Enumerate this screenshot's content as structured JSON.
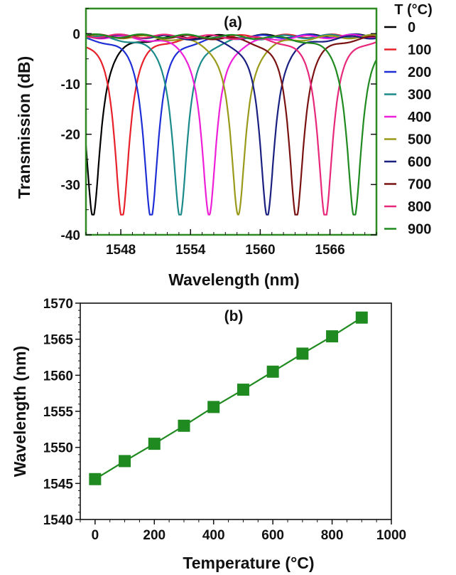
{
  "chart_data": [
    {
      "type": "line",
      "panel_label": "(a)",
      "xlabel": "Wavelength (nm)",
      "ylabel": "Transmission (dB)",
      "xlim": [
        1545,
        1570
      ],
      "ylim": [
        -40,
        5
      ],
      "xticks": [
        1548,
        1554,
        1560,
        1566
      ],
      "yticks": [
        0,
        -10,
        -20,
        -30,
        -40
      ],
      "legend": {
        "title": "T (°C)",
        "placement": "right-outside"
      },
      "colors": {
        "axes_frame": "#2e8b22",
        "black": "#000000",
        "red": "#e8202a",
        "blue": "#1f2fd6",
        "teal": "#1b8a8a",
        "magenta": "#ee1fd8",
        "olive": "#9a9a1a",
        "navy": "#1a2080",
        "maroon": "#7a1212",
        "pink": "#e8287a",
        "green": "#1f8a1f"
      },
      "series": [
        {
          "name": "0",
          "color": "#000000",
          "dip_wavelength": 1545.6,
          "min_dB": -36
        },
        {
          "name": "100",
          "color": "#e8202a",
          "dip_wavelength": 1548.1,
          "min_dB": -36
        },
        {
          "name": "200",
          "color": "#1f2fd6",
          "dip_wavelength": 1550.6,
          "min_dB": -36
        },
        {
          "name": "300",
          "color": "#1b8a8a",
          "dip_wavelength": 1553.1,
          "min_dB": -36
        },
        {
          "name": "400",
          "color": "#ee1fd8",
          "dip_wavelength": 1555.6,
          "min_dB": -36
        },
        {
          "name": "500",
          "color": "#9a9a1a",
          "dip_wavelength": 1558.1,
          "min_dB": -36
        },
        {
          "name": "600",
          "color": "#1a2080",
          "dip_wavelength": 1560.6,
          "min_dB": -36
        },
        {
          "name": "700",
          "color": "#7a1212",
          "dip_wavelength": 1563.1,
          "min_dB": -36
        },
        {
          "name": "800",
          "color": "#e8287a",
          "dip_wavelength": 1565.6,
          "min_dB": -36
        },
        {
          "name": "900",
          "color": "#1f8a1f",
          "dip_wavelength": 1568.1,
          "min_dB": -36
        }
      ],
      "grid": false
    },
    {
      "type": "line",
      "panel_label": "(b)",
      "xlabel": "Temperature (°C)",
      "ylabel": "Wavelength (nm)",
      "xlim": [
        -50,
        1000
      ],
      "ylim": [
        1540,
        1570
      ],
      "xticks": [
        0,
        200,
        400,
        600,
        800,
        1000
      ],
      "yticks": [
        1540,
        1545,
        1550,
        1555,
        1560,
        1565,
        1570
      ],
      "marker": "square",
      "color": "#1f8a1f",
      "x": [
        0,
        100,
        200,
        300,
        400,
        500,
        600,
        700,
        800,
        900
      ],
      "y": [
        1545.6,
        1548.1,
        1550.5,
        1553.0,
        1555.6,
        1558.0,
        1560.5,
        1563.0,
        1565.4,
        1568.0
      ],
      "grid": false
    }
  ]
}
